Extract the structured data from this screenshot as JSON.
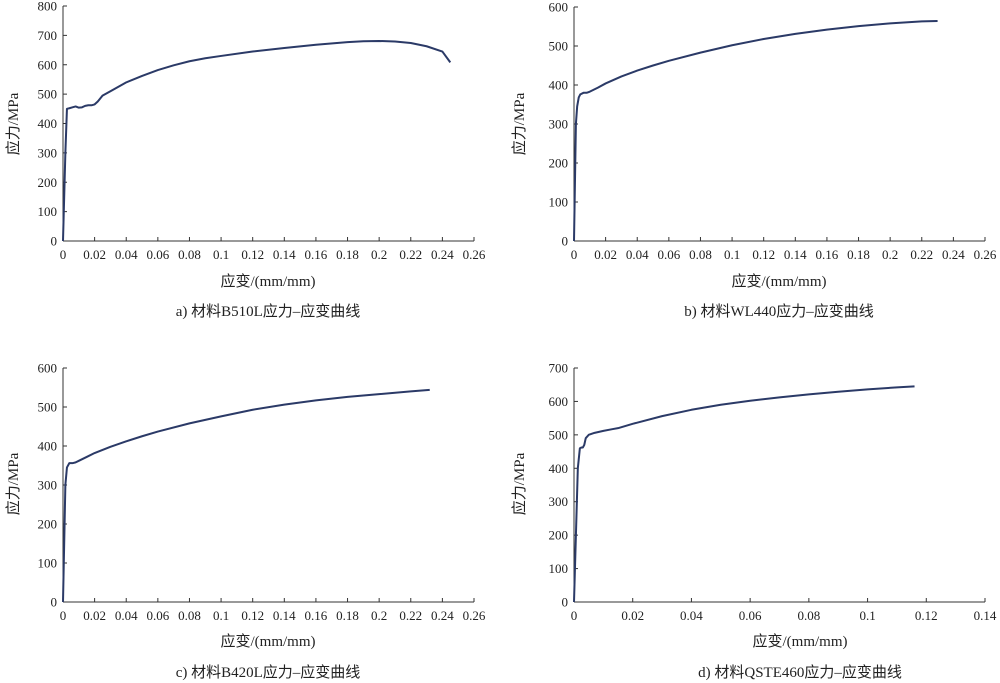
{
  "figure_name": "stress-strain curves",
  "chart_data": [
    {
      "type": "line",
      "caption": "a) 材料B510L应力–应变曲线",
      "xlabel": "应变/(mm/mm)",
      "ylabel": "应力/MPa",
      "xlim": [
        0,
        0.26
      ],
      "ylim": [
        0,
        800
      ],
      "xticks": [
        0,
        0.02,
        0.04,
        0.06,
        0.08,
        0.1,
        0.12,
        0.14,
        0.16,
        0.18,
        0.2,
        0.22,
        0.24,
        0.26
      ],
      "xtick_labels": [
        "0",
        "0.02",
        "0.04",
        "0.06",
        "0.08",
        "0.1",
        "0.12",
        "0.14",
        "0.16",
        "0.18",
        "0.2",
        "0.22",
        "0.24",
        "0.26"
      ],
      "yticks": [
        0,
        100,
        200,
        300,
        400,
        500,
        600,
        700,
        800
      ],
      "ytick_labels": [
        "0",
        "100",
        "200",
        "300",
        "400",
        "500",
        "600",
        "700",
        "800"
      ],
      "series": [
        {
          "name": "B510L",
          "color": "#2b3a67",
          "x": [
            0,
            0.0015,
            0.0025,
            0.004,
            0.006,
            0.008,
            0.01,
            0.012,
            0.014,
            0.016,
            0.018,
            0.02,
            0.022,
            0.025,
            0.03,
            0.04,
            0.05,
            0.06,
            0.07,
            0.08,
            0.09,
            0.1,
            0.12,
            0.14,
            0.16,
            0.18,
            0.19,
            0.2,
            0.21,
            0.22,
            0.23,
            0.24,
            0.245
          ],
          "y": [
            0,
            300,
            450,
            452,
            455,
            458,
            454,
            455,
            460,
            462,
            462,
            465,
            475,
            495,
            510,
            540,
            562,
            582,
            598,
            612,
            622,
            630,
            645,
            657,
            668,
            677,
            680,
            681,
            679,
            674,
            663,
            645,
            608
          ]
        }
      ]
    },
    {
      "type": "line",
      "caption": "b) 材料WL440应力–应变曲线",
      "xlabel": "应变/(mm/mm)",
      "ylabel": "应力/MPa",
      "xlim": [
        0,
        0.26
      ],
      "ylim": [
        0,
        600
      ],
      "xticks": [
        0,
        0.02,
        0.04,
        0.06,
        0.08,
        0.1,
        0.12,
        0.14,
        0.16,
        0.18,
        0.2,
        0.22,
        0.24,
        0.26
      ],
      "xtick_labels": [
        "0",
        "0.02",
        "0.04",
        "0.06",
        "0.08",
        "0.1",
        "0.12",
        "0.14",
        "0.16",
        "0.18",
        "0.2",
        "0.22",
        "0.24",
        "0.26"
      ],
      "yticks": [
        0,
        100,
        200,
        300,
        400,
        500,
        600
      ],
      "ytick_labels": [
        "0",
        "100",
        "200",
        "300",
        "400",
        "500",
        "600"
      ],
      "series": [
        {
          "name": "WL440",
          "color": "#2b3a67",
          "x": [
            0,
            0.0012,
            0.002,
            0.003,
            0.004,
            0.006,
            0.008,
            0.01,
            0.015,
            0.02,
            0.03,
            0.04,
            0.05,
            0.06,
            0.08,
            0.1,
            0.12,
            0.14,
            0.16,
            0.18,
            0.2,
            0.22,
            0.23
          ],
          "y": [
            0,
            300,
            345,
            368,
            376,
            380,
            380,
            383,
            393,
            404,
            422,
            437,
            450,
            462,
            483,
            502,
            518,
            531,
            542,
            551,
            558,
            563,
            564
          ]
        }
      ]
    },
    {
      "type": "line",
      "caption": "c) 材料B420L应力–应变曲线",
      "xlabel": "应变/(mm/mm)",
      "ylabel": "应力/MPa",
      "xlim": [
        0,
        0.26
      ],
      "ylim": [
        0,
        600
      ],
      "xticks": [
        0,
        0.02,
        0.04,
        0.06,
        0.08,
        0.1,
        0.12,
        0.14,
        0.16,
        0.18,
        0.2,
        0.22,
        0.24,
        0.26
      ],
      "xtick_labels": [
        "0",
        "0.02",
        "0.04",
        "0.06",
        "0.08",
        "0.1",
        "0.12",
        "0.14",
        "0.16",
        "0.18",
        "0.2",
        "0.22",
        "0.24",
        "0.26"
      ],
      "yticks": [
        0,
        100,
        200,
        300,
        400,
        500,
        600
      ],
      "ytick_labels": [
        "0",
        "100",
        "200",
        "300",
        "400",
        "500",
        "600"
      ],
      "series": [
        {
          "name": "B420L",
          "color": "#2b3a67",
          "x": [
            0,
            0.0015,
            0.0025,
            0.004,
            0.006,
            0.008,
            0.01,
            0.015,
            0.02,
            0.03,
            0.04,
            0.05,
            0.06,
            0.08,
            0.1,
            0.12,
            0.14,
            0.16,
            0.18,
            0.2,
            0.22,
            0.232
          ],
          "y": [
            0,
            300,
            345,
            356,
            356,
            358,
            362,
            372,
            382,
            398,
            412,
            425,
            437,
            458,
            476,
            493,
            506,
            517,
            526,
            533,
            540,
            544
          ]
        }
      ]
    },
    {
      "type": "line",
      "caption": "d) 材料QSTE460应力–应变曲线",
      "xlabel": "应变/(mm/mm)",
      "ylabel": "应力/MPa",
      "xlim": [
        0,
        0.14
      ],
      "ylim": [
        0,
        700
      ],
      "xticks": [
        0,
        0.02,
        0.04,
        0.06,
        0.08,
        0.1,
        0.12,
        0.14
      ],
      "xtick_labels": [
        "0",
        "0.02",
        "0.04",
        "0.06",
        "0.08",
        "0.1",
        "0.12",
        "0.14"
      ],
      "yticks": [
        0,
        100,
        200,
        300,
        400,
        500,
        600,
        700
      ],
      "ytick_labels": [
        "0",
        "100",
        "200",
        "300",
        "400",
        "500",
        "600",
        "700"
      ],
      "series": [
        {
          "name": "QSTE460",
          "color": "#2b3a67",
          "x": [
            0,
            0.0013,
            0.002,
            0.0025,
            0.003,
            0.0035,
            0.004,
            0.005,
            0.007,
            0.01,
            0.013,
            0.015,
            0.02,
            0.03,
            0.04,
            0.05,
            0.06,
            0.07,
            0.08,
            0.09,
            0.1,
            0.11,
            0.116
          ],
          "y": [
            0,
            400,
            460,
            462,
            462,
            470,
            490,
            500,
            506,
            512,
            517,
            520,
            533,
            556,
            575,
            590,
            602,
            612,
            621,
            629,
            636,
            642,
            645
          ]
        }
      ]
    }
  ]
}
